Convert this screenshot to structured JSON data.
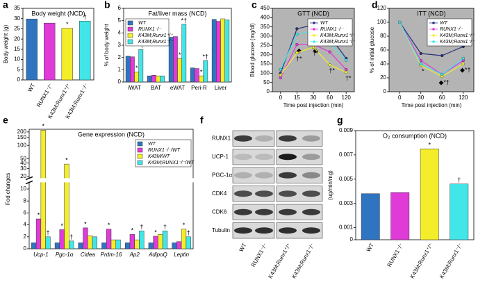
{
  "chart_data": [
    {
      "type": "bar",
      "panel_label": "a",
      "title": "Body weight (NCD)",
      "ylabel": "Body weight (g)",
      "categories": [
        "WT",
        "RUNX1⁻/⁻",
        "K43M;Runx1⁺/⁺",
        "K43M;Runx1⁻/⁻"
      ],
      "values": [
        29.8,
        27.8,
        25.3,
        28.8
      ],
      "marks": [
        null,
        null,
        "*",
        "†"
      ],
      "colors": [
        "#2f74c0",
        "#e03ad8",
        "#f4ee2a",
        "#42e6e8"
      ],
      "ylim": [
        0,
        35
      ],
      "yticks": [
        0,
        5,
        10,
        15,
        20,
        25,
        30,
        35
      ],
      "rotate_labels": true
    },
    {
      "type": "bar",
      "panel_label": "b",
      "title": "Fat/liver mass (NCD)",
      "ylabel": "% of body weight",
      "categories": [
        "iWAT",
        "BAT",
        "eWAT",
        "Peri-R",
        "Liver"
      ],
      "series": [
        {
          "name": "WT",
          "color": "#2f74c0",
          "values": [
            2.1,
            0.5,
            3.65,
            1.15,
            5.1
          ]
        },
        {
          "name": "RUNX1⁻/⁻",
          "color": "#e03ad8",
          "values": [
            2.05,
            0.55,
            3.7,
            1.1,
            4.95
          ]
        },
        {
          "name": "K43M;Runx1⁺/⁺",
          "color": "#f4ee2a",
          "values": [
            0.8,
            0.5,
            1.9,
            0.5,
            5.15
          ],
          "marks": [
            "*",
            null,
            "*",
            "*",
            null
          ]
        },
        {
          "name": "K43M;Runx1⁻/⁻",
          "color": "#42e6e8",
          "values": [
            2.65,
            0.5,
            4.7,
            1.75,
            5.05
          ],
          "marks": [
            "*†",
            null,
            "*†",
            "*†",
            null
          ]
        }
      ],
      "ylim": [
        0,
        6
      ],
      "yticks": [
        0,
        1,
        2,
        3,
        4,
        5,
        6
      ],
      "legend": "upper left"
    },
    {
      "type": "line",
      "panel_label": "c",
      "title": "GTT (NCD)",
      "ylabel": "Blood glucose (mg/dl)",
      "xlabel": "Time post injection (min)",
      "categories": [
        "0",
        "15",
        "30",
        "60",
        "120"
      ],
      "series": [
        {
          "name": "WT",
          "color": "#28307a",
          "values": [
            100,
            340,
            360,
            300,
            180
          ]
        },
        {
          "name": "RUNX1⁻/⁻",
          "color": "#e03ad8",
          "values": [
            75,
            255,
            255,
            215,
            120
          ],
          "marks": [
            null,
            "◆",
            "◆",
            null,
            null
          ]
        },
        {
          "name": "K43M;Runx1⁺/⁺",
          "color": "#f4ee2a",
          "values": [
            90,
            210,
            240,
            145,
            105
          ],
          "marks": [
            null,
            "†*",
            "†*",
            "†*",
            "†*"
          ]
        },
        {
          "name": "K43M;Runx1⁻/⁻",
          "color": "#42e6e8",
          "values": [
            120,
            310,
            330,
            260,
            170
          ]
        }
      ],
      "ylim": [
        0,
        450
      ],
      "yticks": [
        0,
        50,
        100,
        150,
        200,
        250,
        300,
        350,
        400,
        450
      ],
      "legend": "upper right",
      "background": "#b4b4b4"
    },
    {
      "type": "line",
      "panel_label": "d",
      "title": "ITT (NCD)",
      "ylabel": "% of initial glucose",
      "xlabel": "Time post injection (min)",
      "categories": [
        "0",
        "30",
        "60",
        "120"
      ],
      "series": [
        {
          "name": "WT",
          "color": "#28307a",
          "values": [
            100,
            55,
            52,
            65
          ]
        },
        {
          "name": "RUNX1⁻/⁻",
          "color": "#e03ad8",
          "values": [
            100,
            45,
            25,
            45
          ]
        },
        {
          "name": "K43M;Runx1⁺/⁺",
          "color": "#f4ee2a",
          "values": [
            100,
            38,
            22,
            40
          ],
          "marks": [
            null,
            "*",
            "◆*†",
            "◆*†"
          ]
        },
        {
          "name": "K43M;Runx1⁻/⁻",
          "color": "#42e6e8",
          "values": [
            100,
            40,
            25,
            48
          ]
        }
      ],
      "ylim": [
        0,
        120
      ],
      "yticks": [
        0,
        20,
        40,
        60,
        80,
        100,
        120
      ],
      "legend": "upper right",
      "background": "#b4b4b4"
    },
    {
      "type": "bar",
      "panel_label": "e",
      "title": "Gene expression (NCD)",
      "ylabel": "Fod changes",
      "categories": [
        "Ucp-1",
        "Pgc-1α",
        "Cidea",
        "Prdm-16",
        "Ap2",
        "AdipoQ",
        "Leptin"
      ],
      "series": [
        {
          "name": "WT",
          "color": "#2f74c0",
          "values": [
            1,
            1,
            1,
            1,
            1,
            1,
            1
          ]
        },
        {
          "name": "RUNX1⁻/⁻/WT",
          "color": "#e03ad8",
          "values": [
            5,
            3.2,
            3.5,
            3.3,
            2.4,
            2.1,
            1.2
          ],
          "marks": [
            "*",
            "*",
            "*",
            "*",
            "*",
            "*",
            null
          ]
        },
        {
          "name": "K43M/WT",
          "color": "#f4ee2a",
          "values": [
            220,
            38,
            2.2,
            1.5,
            1.5,
            2.4,
            3.3
          ],
          "marks": [
            "*",
            "*",
            null,
            null,
            null,
            null,
            "*"
          ]
        },
        {
          "name": "K43M;RUNX1⁻/⁻/WT",
          "color": "#42e6e8",
          "values": [
            2,
            1.3,
            2,
            1.5,
            3,
            3,
            2
          ],
          "marks": [
            "†",
            "†",
            null,
            null,
            "†",
            "†",
            "†"
          ]
        }
      ],
      "ylim": [
        0,
        230
      ],
      "ybreak": [
        11,
        19
      ],
      "yticks": [
        0,
        2,
        4,
        6,
        8,
        10,
        20,
        30,
        40,
        50,
        100,
        150,
        200
      ],
      "legend": "upper right",
      "italic_categories": true
    },
    {
      "type": "blot",
      "panel_label": "f",
      "rows": [
        "RUNX1",
        "UCP-1",
        "PGC-1α",
        "CDK4",
        "CDK6",
        "Tubulin"
      ],
      "lanes": [
        "WT",
        "RUNX1⁻/⁻",
        "K43M;Runx1⁺/⁺",
        "K43M;Runx1⁻/⁻"
      ]
    },
    {
      "type": "bar",
      "panel_label": "g",
      "title": "O₂ consumption (NCD)",
      "ylabel": "(ug/min/mg)",
      "categories": [
        "WT",
        "RUNX1⁻/⁻",
        "K43M;Runx1⁺/⁺",
        "K43M;Runx1⁻/⁻"
      ],
      "values": [
        0.0038,
        0.0039,
        0.0075,
        0.0046
      ],
      "marks": [
        null,
        null,
        "*",
        "†"
      ],
      "colors": [
        "#2f74c0",
        "#e03ad8",
        "#f4ee2a",
        "#42e6e8"
      ],
      "ylim": [
        0,
        0.009
      ],
      "yticks": [
        0,
        0.001,
        0.003,
        0.005,
        0.007,
        0.009
      ],
      "rotate_labels": true
    }
  ]
}
